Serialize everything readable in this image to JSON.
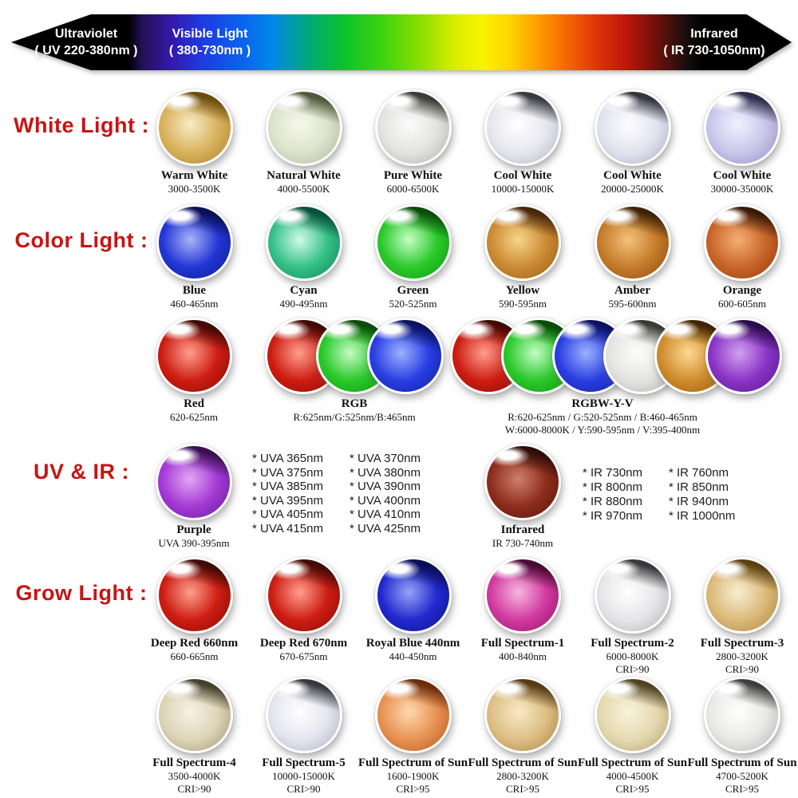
{
  "ui": {
    "background": "#ffffff",
    "heading_color": "#c81414",
    "caption_color": "#111111",
    "bar_text_color": "#ffffff"
  },
  "spectrum_bar": {
    "ultraviolet": [
      "Ultraviolet",
      "( UV 220-380nm )"
    ],
    "visible": [
      "Visible Light",
      "( 380-730nm )"
    ],
    "infrared": [
      "Infrared",
      "( IR 730-1050nm)"
    ]
  },
  "rows": [
    {
      "kind": "leds",
      "heading": "White Light :",
      "items": [
        {
          "label": "Warm White",
          "sub": [
            "3000-3500K"
          ],
          "c": {
            "glow": "#f7ecc4",
            "base": "#d9b25e",
            "edge": "#b18832",
            "dark": "#6a4c0e"
          }
        },
        {
          "label": "Natural White",
          "sub": [
            "4000-5500K"
          ],
          "c": {
            "glow": "#f6f8ec",
            "base": "#dde3cc",
            "edge": "#b2bc9e",
            "dark": "#4e5a3a"
          }
        },
        {
          "label": "Pure White",
          "sub": [
            "6000-6500K"
          ],
          "c": {
            "glow": "#fbfbfb",
            "base": "#e3e3e1",
            "edge": "#b5b5b1",
            "dark": "#3c3c34"
          }
        },
        {
          "label": "Cool White",
          "sub": [
            "10000-15000K"
          ],
          "c": {
            "glow": "#ffffff",
            "base": "#e7e7ef",
            "edge": "#b9b9c9",
            "dark": "#3a3a44"
          }
        },
        {
          "label": "Cool White",
          "sub": [
            "20000-25000K"
          ],
          "c": {
            "glow": "#fdfdff",
            "base": "#e3e3f0",
            "edge": "#b2b2cb",
            "dark": "#34343e"
          }
        },
        {
          "label": "Cool White",
          "sub": [
            "30000-35000K"
          ],
          "c": {
            "glow": "#f1f1ff",
            "base": "#c9c7e9",
            "edge": "#9894cd",
            "dark": "#2e2c4a"
          }
        }
      ]
    },
    {
      "kind": "leds",
      "heading": "Color Light :",
      "items": [
        {
          "label": "Blue",
          "sub": [
            "460-465nm"
          ],
          "c": {
            "glow": "#a8b4f8",
            "base": "#2336d6",
            "edge": "#101e94",
            "dark": "#0a1058"
          }
        },
        {
          "label": "Cyan",
          "sub": [
            "490-495nm"
          ],
          "c": {
            "glow": "#d2fae6",
            "base": "#35c188",
            "edge": "#128c5a",
            "dark": "#07503a"
          }
        },
        {
          "label": "Green",
          "sub": [
            "520-525nm"
          ],
          "c": {
            "glow": "#c6fec6",
            "base": "#2bc92b",
            "edge": "#119e11",
            "dark": "#0a4d0a"
          }
        },
        {
          "label": "Yellow",
          "sub": [
            "590-595nm"
          ],
          "c": {
            "glow": "#f6d68a",
            "base": "#cc8a34",
            "edge": "#9c6418",
            "dark": "#46280a"
          }
        },
        {
          "label": "Amber",
          "sub": [
            "595-600nm"
          ],
          "c": {
            "glow": "#f2c27c",
            "base": "#c57c2a",
            "edge": "#954f12",
            "dark": "#3e2206"
          }
        },
        {
          "label": "Orange",
          "sub": [
            "600-605nm"
          ],
          "c": {
            "glow": "#f4ae74",
            "base": "#c8662a",
            "edge": "#993f10",
            "dark": "#3a1a06"
          }
        }
      ]
    },
    {
      "kind": "groups",
      "groups": [
        {
          "caption": [
            "Red",
            "620-625nm"
          ],
          "leds": [
            {
              "glow": "#ff9e8e",
              "base": "#cd1d12",
              "edge": "#8f0d07",
              "dark": "#400a05"
            }
          ]
        },
        {
          "caption": [
            "RGB",
            "R:625nm/G:525nm/B:465nm"
          ],
          "leds": [
            {
              "glow": "#ff9e8e",
              "base": "#cd1d12",
              "edge": "#8f0d07",
              "dark": "#400a05"
            },
            {
              "glow": "#c4fcc4",
              "base": "#2ac82a",
              "edge": "#109c10",
              "dark": "#0a4a0a"
            },
            {
              "glow": "#9cb2fe",
              "base": "#2a3ee2",
              "edge": "#1222a4",
              "dark": "#0a1260"
            }
          ]
        },
        {
          "caption": [
            "RGBW-Y-V",
            "R:620-625nm / G:520-525nm / B:460-465nm",
            "W:6000-8000K / Y:590-595nm / V:395-400nm"
          ],
          "leds": [
            {
              "glow": "#ff9e8e",
              "base": "#cd1d12",
              "edge": "#8f0d07",
              "dark": "#400a05"
            },
            {
              "glow": "#c4fcc4",
              "base": "#2ac82a",
              "edge": "#109c10",
              "dark": "#0a4a0a"
            },
            {
              "glow": "#9cb2fe",
              "base": "#2a3ee2",
              "edge": "#1222a4",
              "dark": "#0a1260"
            },
            {
              "glow": "#fdfdfd",
              "base": "#e4e4e2",
              "edge": "#b5b5b1",
              "dark": "#3a3a32"
            },
            {
              "glow": "#ffd894",
              "base": "#cf8c2c",
              "edge": "#9a6010",
              "dark": "#3e2404"
            },
            {
              "glow": "#d2a0ee",
              "base": "#8a34c6",
              "edge": "#5a1c94",
              "dark": "#2a0c4c"
            }
          ]
        }
      ]
    },
    {
      "kind": "uvir",
      "heading": "UV & IR :",
      "uv_led": {
        "label": "Purple",
        "sub": [
          "UVA 390-395nm"
        ],
        "c": {
          "glow": "#e2a6f4",
          "base": "#a33ad4",
          "edge": "#701fa2",
          "dark": "#390f50"
        }
      },
      "uva_columns": [
        [
          "* UVA 365nm",
          "* UVA 375nm",
          "* UVA 385nm",
          "* UVA 395nm",
          "* UVA 405nm",
          "* UVA 415nm"
        ],
        [
          "* UVA 370nm",
          "* UVA 380nm",
          "* UVA 390nm",
          "* UVA 400nm",
          "* UVA 410nm",
          "* UVA 425nm"
        ]
      ],
      "ir_led": {
        "label": "Infrared",
        "sub": [
          "IR 730-740nm"
        ],
        "c": {
          "glow": "#cd7f6e",
          "base": "#8e2d1c",
          "edge": "#5c160d",
          "dark": "#2c0d07"
        }
      },
      "ir_columns": [
        [
          "* IR 730nm",
          "* IR 800nm",
          "* IR 880nm",
          "* IR 970nm"
        ],
        [
          "* IR 760nm",
          "* IR 850nm",
          "* IR 940nm",
          "* IR 1000nm"
        ]
      ]
    },
    {
      "kind": "leds",
      "heading": "Grow Light :",
      "items": [
        {
          "label": "Deep Red 660nm",
          "sub": [
            "660-665nm"
          ],
          "c": {
            "glow": "#ff9e8e",
            "base": "#cd1d12",
            "edge": "#8f0d07",
            "dark": "#400a05"
          }
        },
        {
          "label": "Deep Red 670nm",
          "sub": [
            "670-675nm"
          ],
          "c": {
            "glow": "#ff9e8e",
            "base": "#cd1d12",
            "edge": "#8f0d07",
            "dark": "#400a05"
          }
        },
        {
          "label": "Royal Blue 440nm",
          "sub": [
            "440-450nm"
          ],
          "c": {
            "glow": "#96a4f6",
            "base": "#2228ce",
            "edge": "#111792",
            "dark": "#0a0e54"
          }
        },
        {
          "label": "Full Spectrum-1",
          "sub": [
            "400-840nm"
          ],
          "c": {
            "glow": "#f6b6de",
            "base": "#d23aa0",
            "edge": "#97186e",
            "dark": "#470b31"
          }
        },
        {
          "label": "Full Spectrum-2",
          "sub": [
            "6000-8000K",
            "CRI>90"
          ],
          "c": {
            "glow": "#ffffff",
            "base": "#e6e6e8",
            "edge": "#b7b7b9",
            "dark": "#38383a"
          }
        },
        {
          "label": "Full Spectrum-3",
          "sub": [
            "2800-3200K",
            "CRI>90"
          ],
          "c": {
            "glow": "#f9eed2",
            "base": "#dcba7a",
            "edge": "#b08c4a",
            "dark": "#584010"
          }
        }
      ]
    },
    {
      "kind": "leds",
      "heading": "",
      "items": [
        {
          "label": "Full Spectrum-4",
          "sub": [
            "3500-4000K",
            "CRI>90"
          ],
          "c": {
            "glow": "#f6f2e4",
            "base": "#ded4b8",
            "edge": "#a89e7a",
            "dark": "#46402a"
          }
        },
        {
          "label": "Full Spectrum-5",
          "sub": [
            "10000-15000K",
            "CRI>90"
          ],
          "c": {
            "glow": "#ffffff",
            "base": "#e5e5ef",
            "edge": "#b4b4c8",
            "dark": "#36363e"
          }
        },
        {
          "label": "Full Spectrum of Sun",
          "sub": [
            "1600-1900K",
            "CRI>95"
          ],
          "c": {
            "glow": "#ffd9ae",
            "base": "#e79253",
            "edge": "#bc5f24",
            "dark": "#6c2c0a"
          }
        },
        {
          "label": "Full Spectrum of Sun",
          "sub": [
            "2800-3200K",
            "CRI>95"
          ],
          "c": {
            "glow": "#f9e9c6",
            "base": "#debf84",
            "edge": "#b08a4e",
            "dark": "#563a12"
          }
        },
        {
          "label": "Full Spectrum of Sun",
          "sub": [
            "4000-4500K",
            "CRI>95"
          ],
          "c": {
            "glow": "#f9f3dd",
            "base": "#e5d9b0",
            "edge": "#b6a976",
            "dark": "#4e4220"
          }
        },
        {
          "label": "Full Spectrum of Sun",
          "sub": [
            "4700-5200K",
            "CRI>95"
          ],
          "c": {
            "glow": "#ffffff",
            "base": "#e9e9e7",
            "edge": "#b8b8b6",
            "dark": "#3e3e3e"
          }
        }
      ]
    }
  ]
}
